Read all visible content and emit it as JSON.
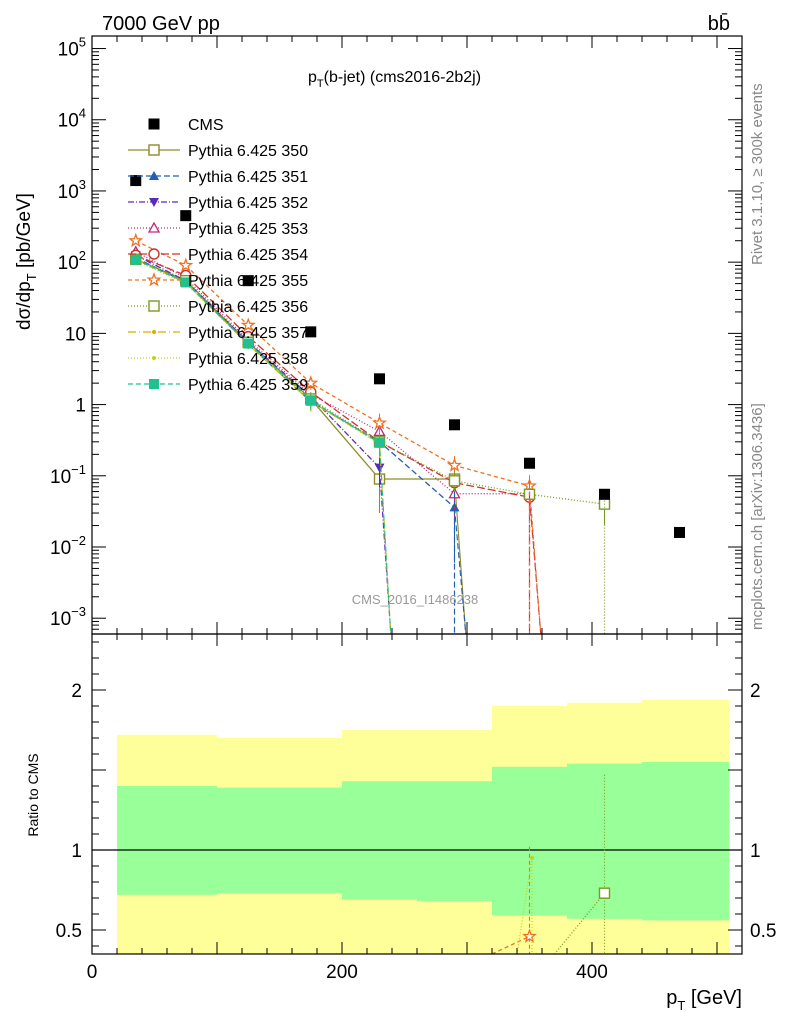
{
  "header": {
    "energy_label": "7000 GeV pp",
    "process_label": "bb̄"
  },
  "side_labels": {
    "rivet": "Rivet 3.1.10, ≥ 300k events",
    "mcplots": "mcplots.cern.ch [arXiv:1306.3436]"
  },
  "chart_data": [
    {
      "type": "scatter",
      "title_main": "p",
      "title_sub": "T",
      "title_rest": "(b-jet) (cms2016-2b2j)",
      "ylabel": "dσ/dp",
      "ylabel_sub": "T",
      "ylabel_unit": " [pb/GeV]",
      "watermark": "CMS_2016_I1486238",
      "yscale": "log",
      "xlim": [
        0,
        520
      ],
      "ylim": [
        0.0006,
        150000
      ],
      "y_ticks": [
        {
          "value": 0.001,
          "base": "10",
          "exp": "−3"
        },
        {
          "value": 0.01,
          "base": "10",
          "exp": "−2"
        },
        {
          "value": 0.1,
          "base": "10",
          "exp": "−1"
        },
        {
          "value": 1,
          "base": "1",
          "exp": ""
        },
        {
          "value": 10,
          "base": "10",
          "exp": ""
        },
        {
          "value": 100,
          "base": "10",
          "exp": "2"
        },
        {
          "value": 1000,
          "base": "10",
          "exp": "3"
        },
        {
          "value": 10000,
          "base": "10",
          "exp": "4"
        },
        {
          "value": 100000,
          "base": "10",
          "exp": "5"
        }
      ],
      "legend_position": "top-left",
      "data": {
        "name": "CMS",
        "x": [
          35,
          75,
          125,
          175,
          230,
          290,
          350,
          410,
          470
        ],
        "y": [
          1400,
          450,
          55,
          10.5,
          2.3,
          0.52,
          0.15,
          0.055,
          0.016
        ]
      },
      "x": [
        35,
        75,
        125,
        175,
        230,
        290,
        350,
        410
      ],
      "series": [
        {
          "name": "Pythia 6.425 350",
          "color": "#8c8c28",
          "dash": "",
          "marker": "square-open",
          "y": [
            110,
            55,
            7.5,
            1.2,
            0.09,
            0.09,
            null,
            null
          ],
          "err": [
            15,
            6,
            1,
            0.3,
            0.06,
            0.03,
            null,
            null
          ]
        },
        {
          "name": "Pythia 6.425 351",
          "color": "#1f5fb4",
          "dash": "6,3",
          "marker": "triangle-up",
          "y": [
            115,
            52,
            7,
            1.1,
            0.3,
            0.036,
            null,
            null
          ],
          "err": [
            15,
            6,
            1,
            0.3,
            0.15,
            0.03,
            null,
            null
          ]
        },
        {
          "name": "Pythia 6.425 352",
          "color": "#5a2ab8",
          "dash": "6,2,1,2",
          "marker": "triangle-down",
          "y": [
            125,
            55,
            7.5,
            1.3,
            0.13,
            null,
            null,
            null
          ],
          "err": [
            15,
            6,
            1,
            0.3,
            0.06,
            null,
            null,
            null
          ]
        },
        {
          "name": "Pythia 6.425 353",
          "color": "#c0287c",
          "dash": "1,2",
          "marker": "triangle-up-open",
          "y": [
            140,
            60,
            8,
            1.4,
            0.42,
            0.056,
            0.056,
            null
          ],
          "err": [
            15,
            6,
            1,
            0.3,
            0.15,
            0.03,
            0.03,
            null
          ]
        },
        {
          "name": "Pythia 6.425 354",
          "color": "#d03030",
          "dash": "8,3",
          "marker": "circle-open",
          "y": [
            125,
            65,
            9,
            1.5,
            0.3,
            0.08,
            0.05,
            null
          ],
          "err": [
            15,
            6,
            1,
            0.3,
            0.1,
            0.03,
            0.02,
            null
          ]
        },
        {
          "name": "Pythia 6.425 355",
          "color": "#f07020",
          "dash": "4,3",
          "marker": "star-open",
          "y": [
            200,
            90,
            13,
            2.0,
            0.55,
            0.14,
            0.072,
            null
          ],
          "err": [
            20,
            8,
            1.5,
            0.4,
            0.2,
            0.05,
            0.03,
            null
          ]
        },
        {
          "name": "Pythia 6.425 356",
          "color": "#7a9a20",
          "dash": "1,2",
          "marker": "square-open",
          "y": [
            110,
            55,
            7.5,
            1.2,
            0.3,
            0.085,
            0.055,
            0.04
          ],
          "err": [
            15,
            6,
            1,
            0.3,
            0.1,
            0.03,
            0.03,
            0.02
          ]
        },
        {
          "name": "Pythia 6.425 357",
          "color": "#d4b000",
          "dash": "8,3,1,3",
          "marker": "dot",
          "y": [
            110,
            52,
            7,
            1.1,
            0.29,
            null,
            null,
            null
          ],
          "err": [
            15,
            6,
            1,
            0.3,
            0.1,
            null,
            null,
            null
          ]
        },
        {
          "name": "Pythia 6.425 358",
          "color": "#c4d020",
          "dash": "1,2",
          "marker": "dot",
          "y": [
            105,
            50,
            7,
            1.1,
            0.28,
            null,
            null,
            null
          ],
          "err": [
            15,
            6,
            1,
            0.3,
            0.1,
            null,
            null,
            null
          ]
        },
        {
          "name": "Pythia 6.425 359",
          "color": "#20c090",
          "dash": "5,3",
          "marker": "square",
          "y": [
            108,
            52,
            7.2,
            1.15,
            0.29,
            null,
            null,
            null
          ],
          "err": [
            15,
            6,
            1,
            0.3,
            0.1,
            null,
            null,
            null
          ]
        }
      ]
    },
    {
      "type": "area",
      "ylabel": "Ratio to CMS",
      "xlabel": "p",
      "xlabel_sub": "T",
      "xlabel_unit": " [GeV]",
      "xlim": [
        0,
        520
      ],
      "ylim": [
        0.35,
        2.35
      ],
      "x_ticks": [
        0,
        200,
        400
      ],
      "y_ticks": [
        0.5,
        1,
        2
      ],
      "reference_line": 1,
      "bands": {
        "bin_edges": [
          20,
          100,
          150,
          200,
          260,
          320,
          380,
          440,
          510
        ],
        "yellow_low": [
          0.35,
          0.35,
          0.35,
          0.35,
          0.35,
          0.35,
          0.35,
          0.35
        ],
        "yellow_high": [
          1.72,
          1.7,
          1.7,
          1.75,
          1.75,
          1.9,
          1.92,
          1.94
        ],
        "green_low": [
          0.72,
          0.73,
          0.73,
          0.69,
          0.68,
          0.59,
          0.57,
          0.56
        ],
        "green_high": [
          1.4,
          1.39,
          1.39,
          1.43,
          1.43,
          1.52,
          1.54,
          1.55
        ]
      },
      "series": [
        {
          "name": "Pythia 6.425 355",
          "color": "#f07020",
          "dash": "4,3",
          "marker": "star-open",
          "x": [
            320,
            350
          ],
          "y": [
            0.35,
            0.46
          ],
          "err_x": 350,
          "err_low": 0.35,
          "err_high": 1.02
        },
        {
          "name": "Pythia 6.425 356",
          "color": "#7a9a20",
          "dash": "1,2",
          "marker": "square-open",
          "x": [
            370,
            410
          ],
          "y": [
            0.35,
            0.73
          ],
          "err_x": 410,
          "err_low": 0.35,
          "err_high": 1.47
        },
        {
          "name": "Pythia 6.425 358",
          "color": "#c4d020",
          "dash": "1,2",
          "marker": "dot",
          "x": [
            340,
            352
          ],
          "y": [
            0.35,
            0.95
          ],
          "err_x": 352,
          "err_low": 0.35,
          "err_high": 0.95
        }
      ]
    }
  ]
}
